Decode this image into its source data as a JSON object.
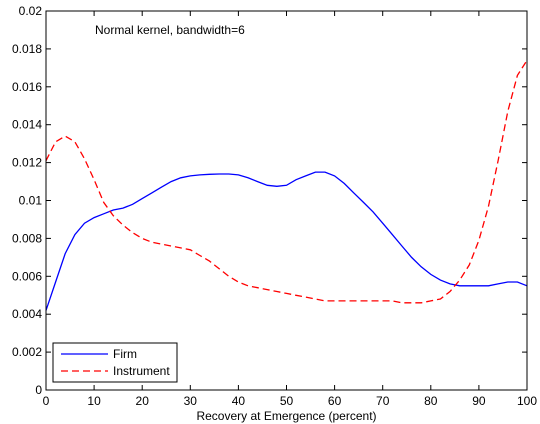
{
  "chart_data": {
    "type": "line",
    "title": "",
    "annotation": "Normal kernel, bandwidth=6",
    "xlabel": "Recovery at Emergence (percent)",
    "ylabel": "",
    "xlim": [
      0,
      100
    ],
    "ylim": [
      0,
      0.02
    ],
    "xticks": [
      0,
      10,
      20,
      30,
      40,
      50,
      60,
      70,
      80,
      90,
      100
    ],
    "yticks": [
      0,
      0.002,
      0.004,
      0.006,
      0.008,
      0.01,
      0.012,
      0.014,
      0.016,
      0.018,
      0.02
    ],
    "ytick_labels": [
      "0",
      "0.002",
      "0.004",
      "0.006",
      "0.008",
      "0.01",
      "0.012",
      "0.014",
      "0.016",
      "0.018",
      "0.02"
    ],
    "grid": false,
    "legend_position": "bottom-left",
    "series": [
      {
        "name": "Firm",
        "color": "#0000ff",
        "dash": "solid",
        "x": [
          0,
          2,
          4,
          6,
          8,
          10,
          12,
          14,
          16,
          18,
          20,
          22,
          24,
          26,
          28,
          30,
          32,
          34,
          36,
          38,
          40,
          42,
          44,
          46,
          48,
          50,
          52,
          54,
          56,
          58,
          60,
          62,
          64,
          66,
          68,
          70,
          72,
          74,
          76,
          78,
          80,
          82,
          84,
          86,
          88,
          90,
          92,
          94,
          96,
          98,
          100
        ],
        "y": [
          0.0042,
          0.0057,
          0.0072,
          0.0082,
          0.0088,
          0.0091,
          0.0093,
          0.0095,
          0.0096,
          0.0098,
          0.0101,
          0.0104,
          0.0107,
          0.011,
          0.0112,
          0.0113,
          0.01135,
          0.01138,
          0.0114,
          0.0114,
          0.01135,
          0.0112,
          0.011,
          0.0108,
          0.01075,
          0.0108,
          0.0111,
          0.0113,
          0.0115,
          0.0115,
          0.0113,
          0.0109,
          0.0104,
          0.0099,
          0.0094,
          0.0088,
          0.0082,
          0.0076,
          0.007,
          0.0065,
          0.0061,
          0.0058,
          0.0056,
          0.0055,
          0.0055,
          0.0055,
          0.0055,
          0.0056,
          0.0057,
          0.0057,
          0.0055
        ]
      },
      {
        "name": "Instrument",
        "color": "#ff0000",
        "dash": "dashed",
        "x": [
          0,
          2,
          4,
          6,
          8,
          10,
          12,
          14,
          16,
          18,
          20,
          22,
          24,
          26,
          28,
          30,
          32,
          34,
          36,
          38,
          40,
          42,
          44,
          46,
          48,
          50,
          52,
          54,
          56,
          58,
          60,
          62,
          64,
          66,
          68,
          70,
          72,
          74,
          76,
          78,
          80,
          82,
          84,
          86,
          88,
          90,
          92,
          94,
          96,
          98,
          100
        ],
        "y": [
          0.0121,
          0.0131,
          0.0134,
          0.0131,
          0.0122,
          0.0111,
          0.0099,
          0.0092,
          0.0087,
          0.0083,
          0.008,
          0.0078,
          0.0077,
          0.0076,
          0.0075,
          0.0074,
          0.0071,
          0.0068,
          0.0064,
          0.006,
          0.0057,
          0.0055,
          0.0054,
          0.0053,
          0.0052,
          0.0051,
          0.005,
          0.0049,
          0.0048,
          0.0047,
          0.0047,
          0.0047,
          0.0047,
          0.0047,
          0.0047,
          0.0047,
          0.0047,
          0.0046,
          0.0046,
          0.0046,
          0.0047,
          0.0048,
          0.0052,
          0.0058,
          0.0066,
          0.0079,
          0.0097,
          0.0121,
          0.0147,
          0.0166,
          0.0174
        ]
      }
    ]
  }
}
